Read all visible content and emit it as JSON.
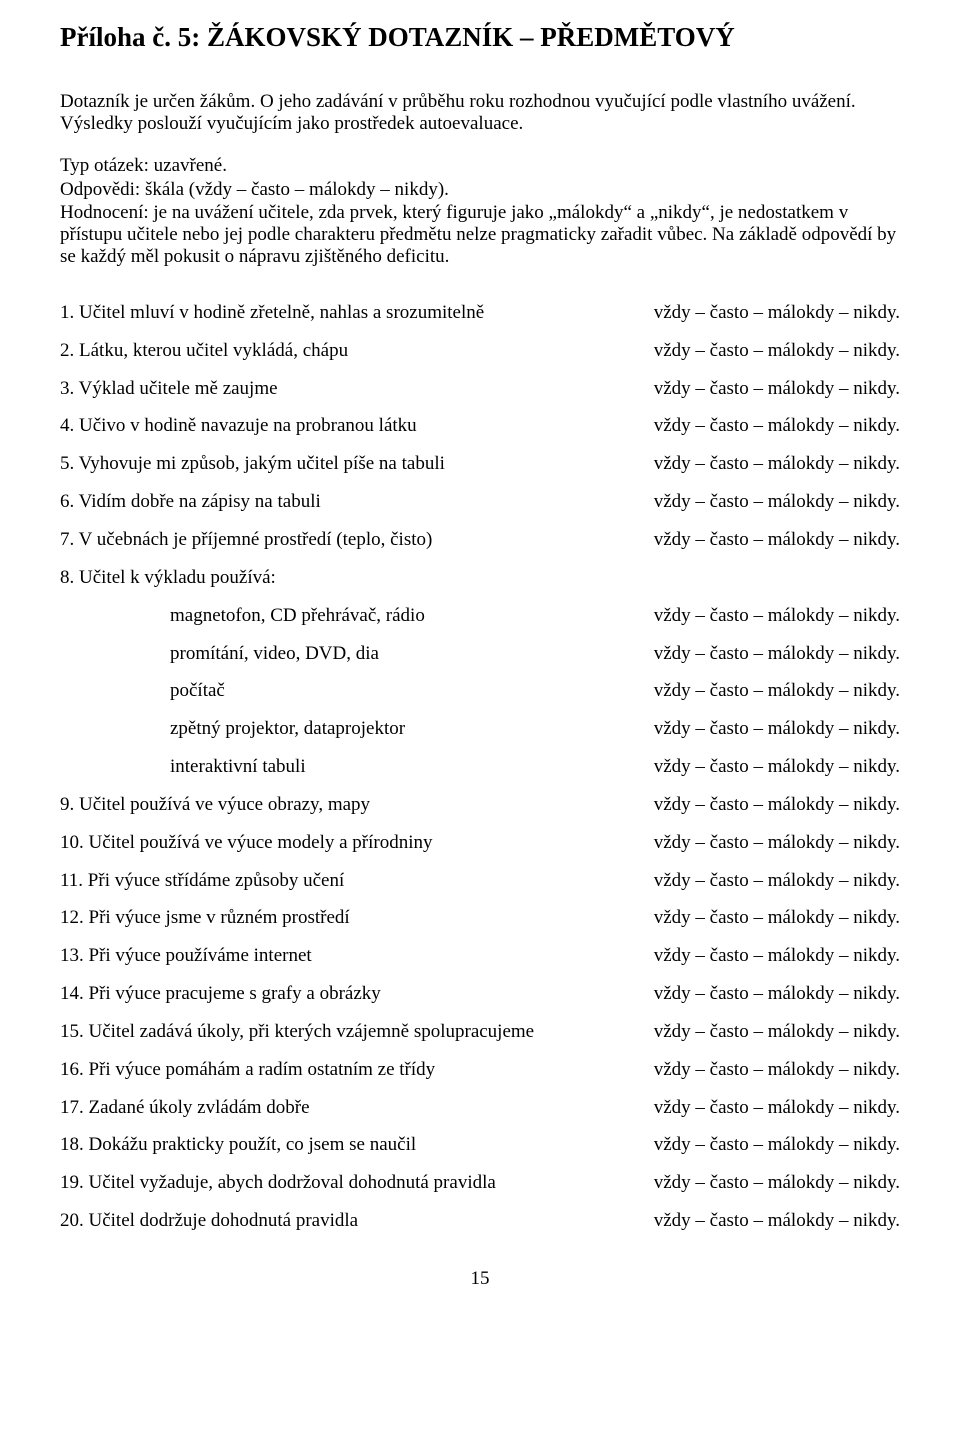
{
  "title": "Příloha č. 5:   ŽÁKOVSKÝ DOTAZNÍK – PŘEDMĚTOVÝ",
  "intro1": "Dotazník je určen žákům. O jeho zadávání v průběhu roku rozhodnou vyučující podle vlastního uvážení. Výsledky poslouží vyučujícím jako prostředek autoevaluace.",
  "intro2a": "Typ otázek: uzavřené.",
  "intro2b": "Odpovědi: škála (vždy – často – málokdy – nikdy).",
  "intro2c": "Hodnocení: je na uvážení učitele, zda prvek, který figuruje jako „málokdy“ a „nikdy“, je nedostatkem v přístupu učitele nebo jej podle charakteru předmětu nelze pragmaticky zařadit vůbec. Na základě odpovědí by se každý měl pokusit o nápravu zjištěného deficitu.",
  "scale": "vždy – často – málokdy – nikdy.",
  "questions": {
    "q1": "1.  Učitel mluví v hodině zřetelně, nahlas a srozumitelně",
    "q2": "2.  Látku, kterou učitel vykládá, chápu",
    "q3": "3.  Výklad učitele mě zaujme",
    "q4": "4.  Učivo v hodině navazuje na probranou látku",
    "q5": "5.  Vyhovuje mi způsob, jakým učitel píše na tabuli",
    "q6": "6.  Vidím dobře na zápisy na tabuli",
    "q7": "7.  V učebnách je příjemné prostředí (teplo, čisto)",
    "q8h": "8.  Učitel k výkladu používá:",
    "q8a": "magnetofon, CD přehrávač, rádio",
    "q8b": "promítání, video, DVD, dia",
    "q8c": "počítač",
    "q8d": "zpětný projektor, dataprojektor",
    "q8e": "interaktivní tabuli",
    "q9": "9.  Učitel používá ve výuce obrazy, mapy",
    "q10": "10. Učitel používá ve výuce modely a přírodniny",
    "q11": "11. Při výuce střídáme způsoby učení",
    "q12": "12. Při výuce jsme v různém prostředí",
    "q13": "13. Při výuce používáme internet",
    "q14": "14. Při výuce pracujeme s grafy a obrázky",
    "q15": "15. Učitel zadává úkoly, při kterých vzájemně spolupracujeme",
    "q16": "16. Při výuce pomáhám a radím ostatním ze třídy",
    "q17": "17. Zadané úkoly zvládám dobře",
    "q18": "18. Dokážu prakticky použít, co jsem se naučil",
    "q19": "19. Učitel vyžaduje, abych dodržoval dohodnutá pravidla",
    "q20": "20. Učitel dodržuje dohodnutá pravidla"
  },
  "pageNumber": "15"
}
